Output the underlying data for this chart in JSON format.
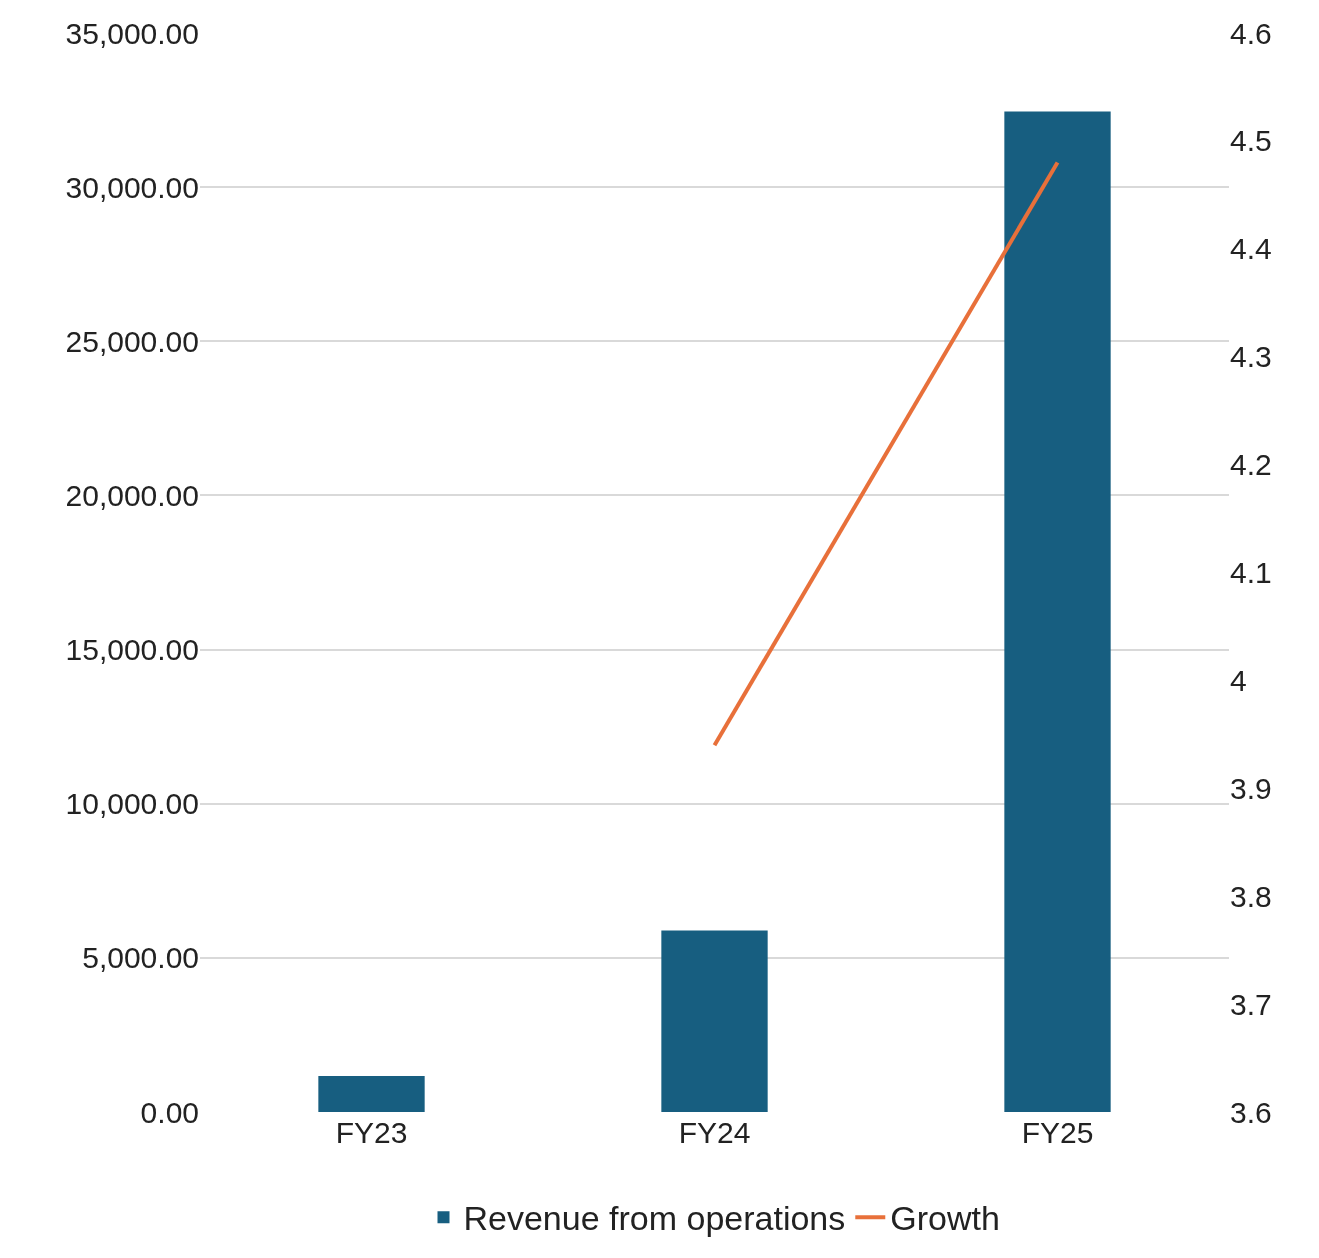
{
  "chart_data": {
    "type": "bar",
    "categories": [
      "FY23",
      "FY24",
      "FY25"
    ],
    "series": [
      {
        "name": "Revenue from operations",
        "color": "#175e80",
        "values": [
          1170,
          5890,
          32450
        ]
      },
      {
        "name": "Growth",
        "type": "line",
        "axis": "y2",
        "color": "#e8703a",
        "values": [
          null,
          3.94,
          4.48
        ],
        "marker": "none"
      }
    ],
    "ylim": [
      0,
      35000
    ],
    "yticks": [
      {
        "value": 0,
        "label": "0.00"
      },
      {
        "value": 5000,
        "label": "5,000.00"
      },
      {
        "value": 10000,
        "label": "10,000.00"
      },
      {
        "value": 15000,
        "label": "15,000.00"
      },
      {
        "value": 20000,
        "label": "20,000.00"
      },
      {
        "value": 25000,
        "label": "25,000.00"
      },
      {
        "value": 30000,
        "label": "30,000.00"
      },
      {
        "value": 35000,
        "label": "35,000.00"
      }
    ],
    "y2lim": [
      3.6,
      4.6
    ],
    "y2ticks": [
      3.6,
      3.7,
      3.8,
      3.9,
      4,
      4.1,
      4.2,
      4.3,
      4.4,
      4.5,
      4.6
    ],
    "grid": "y",
    "legend": "bottom"
  }
}
